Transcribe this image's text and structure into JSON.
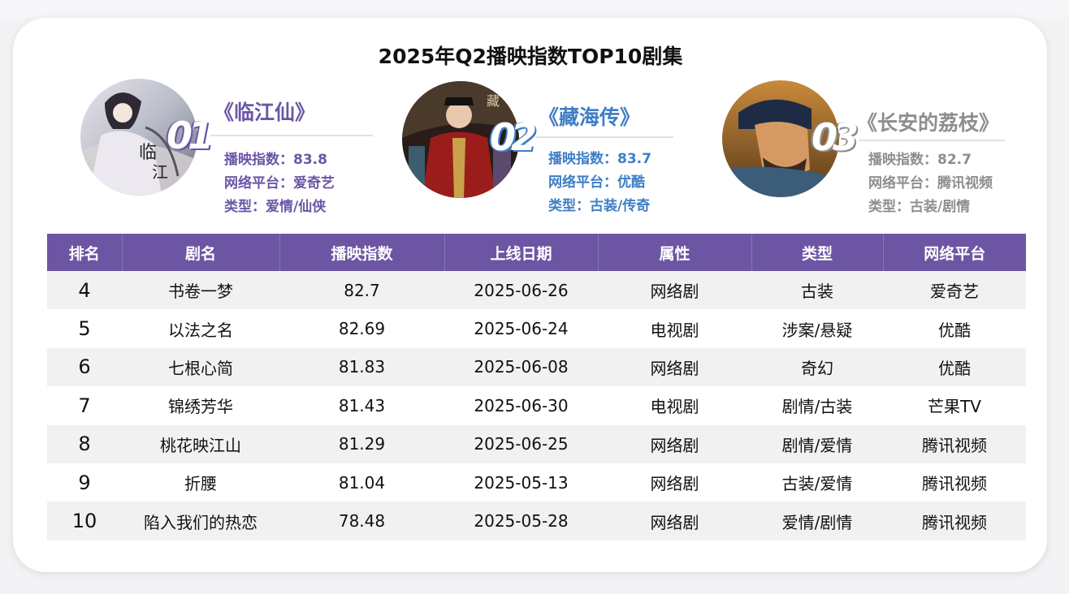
{
  "title": "2025年Q2播映指数TOP10剧集",
  "top3": [
    {
      "rank": "01",
      "name": "《临江仙》",
      "index_line": "播映指数：83.8",
      "platform_line": "网络平台：爱奇艺",
      "genre_line": "类型：爱情/仙侠",
      "color": "#6b56a6"
    },
    {
      "rank": "02",
      "name": "《藏海传》",
      "index_line": "播映指数：83.7",
      "platform_line": "网络平台：优酷",
      "genre_line": "类型：古装/传奇",
      "color": "#3f7ec4"
    },
    {
      "rank": "03",
      "name": "《长安的荔枝》",
      "index_line": "播映指数：82.7",
      "platform_line": "网络平台：腾讯视频",
      "genre_line": "类型：古装/剧情",
      "color": "#8e8e8e"
    }
  ],
  "table": {
    "headers": [
      "排名",
      "剧名",
      "播映指数",
      "上线日期",
      "属性",
      "类型",
      "网络平台"
    ],
    "rows": [
      [
        "4",
        "书卷一梦",
        "82.7",
        "2025-06-26",
        "网络剧",
        "古装",
        "爱奇艺"
      ],
      [
        "5",
        "以法之名",
        "82.69",
        "2025-06-24",
        "电视剧",
        "涉案/悬疑",
        "优酷"
      ],
      [
        "6",
        "七根心简",
        "81.83",
        "2025-06-08",
        "网络剧",
        "奇幻",
        "优酷"
      ],
      [
        "7",
        "锦绣芳华",
        "81.43",
        "2025-06-30",
        "电视剧",
        "剧情/古装",
        "芒果TV"
      ],
      [
        "8",
        "桃花映江山",
        "81.29",
        "2025-06-25",
        "网络剧",
        "剧情/爱情",
        "腾讯视频"
      ],
      [
        "9",
        "折腰",
        "81.04",
        "2025-05-13",
        "网络剧",
        "古装/爱情",
        "腾讯视频"
      ],
      [
        "10",
        "陷入我们的热恋",
        "78.48",
        "2025-05-28",
        "网络剧",
        "爱情/剧情",
        "腾讯视频"
      ]
    ]
  },
  "colors": {
    "header_bg": "#6c56a3",
    "row_stripe": "#f1f1f1"
  }
}
